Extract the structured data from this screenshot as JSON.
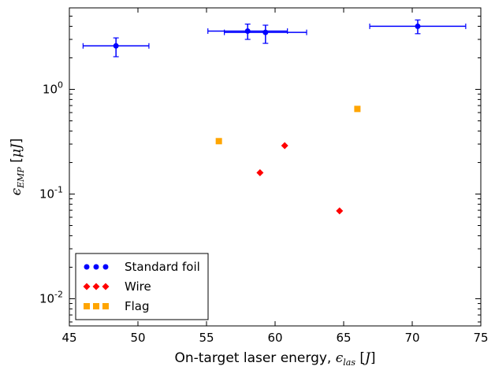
{
  "chart_data": {
    "type": "scatter",
    "xlabel_text": "On-target laser energy, ",
    "xlabel_symbol": "ϵ",
    "xlabel_subscript": "las",
    "xlabel_unit": "J",
    "ylabel_symbol": "ϵ",
    "ylabel_subscript": "EMP",
    "ylabel_unit": "μJ",
    "xlim": [
      45,
      75
    ],
    "ylim": [
      0.0055,
      6.0
    ],
    "yscale": "log",
    "grid": false,
    "legend_position": "lower-left",
    "x_ticks": [
      45,
      50,
      55,
      60,
      65,
      70,
      75
    ],
    "x_tick_labels": [
      "45",
      "50",
      "55",
      "60",
      "65",
      "70",
      "75"
    ],
    "y_ticks": [
      {
        "value": 0.01,
        "base": "10",
        "exp": "-2"
      },
      {
        "value": 0.1,
        "base": "10",
        "exp": "-1"
      },
      {
        "value": 1,
        "base": "10",
        "exp": "0"
      }
    ],
    "series": [
      {
        "name": "Standard foil",
        "color": "#0000ff",
        "marker": "circle",
        "points": [
          {
            "x": 48.4,
            "y": 2.6,
            "xerr": 2.4,
            "ylo": 2.05,
            "yhi": 3.1
          },
          {
            "x": 58.0,
            "y": 3.6,
            "xerr": 2.9,
            "ylo": 3.0,
            "yhi": 4.2
          },
          {
            "x": 59.3,
            "y": 3.5,
            "xerr": 3.0,
            "ylo": 2.75,
            "yhi": 4.1
          },
          {
            "x": 70.4,
            "y": 4.0,
            "xerr": 3.5,
            "ylo": 3.4,
            "yhi": 4.6
          }
        ]
      },
      {
        "name": "Wire",
        "color": "#ff0000",
        "marker": "diamond",
        "points": [
          {
            "x": 58.9,
            "y": 0.16
          },
          {
            "x": 60.7,
            "y": 0.29
          },
          {
            "x": 64.7,
            "y": 0.069
          }
        ]
      },
      {
        "name": "Flag",
        "color": "#ffa500",
        "marker": "square",
        "points": [
          {
            "x": 55.9,
            "y": 0.32
          },
          {
            "x": 66.0,
            "y": 0.65
          }
        ]
      }
    ]
  }
}
